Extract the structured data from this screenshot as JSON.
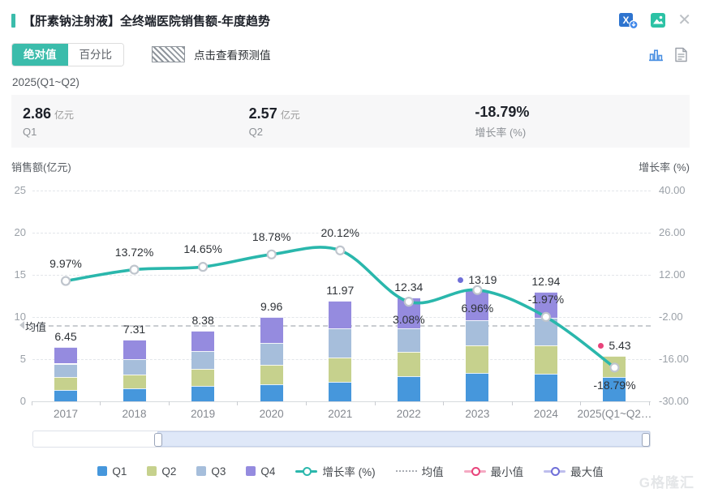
{
  "header": {
    "title": "【肝素钠注射液】全终端医院销售额-年度趋势"
  },
  "toolbar": {
    "tabs": [
      {
        "label": "绝对值",
        "active": true
      },
      {
        "label": "百分比",
        "active": false
      }
    ],
    "forecast_label": "点击查看预测值"
  },
  "period_label": "2025(Q1~Q2)",
  "stats": [
    {
      "value": "2.86",
      "unit": "亿元",
      "label": "Q1"
    },
    {
      "value": "2.57",
      "unit": "亿元",
      "label": "Q2"
    },
    {
      "value": "-18.79%",
      "unit": "",
      "label": "增长率 (%)"
    }
  ],
  "chart_data": {
    "type": "bar",
    "title": "全终端医院销售额-年度趋势",
    "categories": [
      "2017",
      "2018",
      "2019",
      "2020",
      "2021",
      "2022",
      "2023",
      "2024",
      "2025(Q1~Q2…"
    ],
    "bar_series": [
      {
        "name": "Q1",
        "color": "#4697dc",
        "values": [
          1.35,
          1.52,
          1.85,
          2.05,
          2.3,
          3.0,
          3.32,
          3.3,
          2.86
        ]
      },
      {
        "name": "Q2",
        "color": "#c6d18d",
        "values": [
          1.5,
          1.68,
          2.0,
          2.3,
          2.85,
          2.9,
          3.3,
          3.3,
          2.57
        ]
      },
      {
        "name": "Q3",
        "color": "#a6bedb",
        "values": [
          1.62,
          1.8,
          2.08,
          2.62,
          3.55,
          2.8,
          2.95,
          3.3,
          0
        ]
      },
      {
        "name": "Q4",
        "color": "#958bdf",
        "values": [
          1.98,
          2.31,
          2.45,
          2.99,
          3.27,
          3.64,
          3.62,
          3.04,
          0
        ]
      }
    ],
    "totals": [
      6.45,
      7.31,
      8.38,
      9.96,
      11.97,
      12.34,
      13.19,
      12.94,
      5.43
    ],
    "total_labels": [
      "6.45",
      "7.31",
      "8.38",
      "9.96",
      "11.97",
      "12.34",
      "13.19",
      "12.94",
      "5.43"
    ],
    "line_series": {
      "name": "增长率 (%)",
      "color": "#2ab7ac",
      "values": [
        9.97,
        13.72,
        14.65,
        18.78,
        20.12,
        3.08,
        6.96,
        -1.97,
        -18.79
      ],
      "labels": [
        "9.97%",
        "13.72%",
        "14.65%",
        "18.78%",
        "20.12%",
        "3.08%",
        "6.96%",
        "-1.97%",
        "-18.79%"
      ]
    },
    "left_axis": {
      "title": "销售额(亿元)",
      "ticks": [
        "25",
        "20",
        "15",
        "10",
        "5",
        "0"
      ],
      "range": [
        0,
        25
      ]
    },
    "right_axis": {
      "title": "增长率 (%)",
      "ticks": [
        "40.00",
        "26.00",
        "12.00",
        "-2.00",
        "-16.00",
        "-30.00"
      ],
      "range": [
        -30,
        40
      ]
    },
    "mean": {
      "label": "均值"
    },
    "max_point": {
      "category": "2023",
      "value": 13.19,
      "color": "#6f6fd8"
    },
    "min_point": {
      "category": "2025(Q1~Q2…",
      "value": 5.43,
      "color": "#e8437a"
    },
    "legend": [
      {
        "label": "Q1",
        "marker": "square",
        "color": "#4697dc"
      },
      {
        "label": "Q2",
        "marker": "square",
        "color": "#c6d18d"
      },
      {
        "label": "Q3",
        "marker": "square",
        "color": "#a6bedb"
      },
      {
        "label": "Q4",
        "marker": "square",
        "color": "#958bdf"
      },
      {
        "label": "增长率 (%)",
        "marker": "line-circle",
        "color": "#2ab7ac"
      },
      {
        "label": "均值",
        "marker": "dotted",
        "color": "#a9adb3"
      },
      {
        "label": "最小值",
        "marker": "ring",
        "color": "#e8437a"
      },
      {
        "label": "最大值",
        "marker": "ring",
        "color": "#6f6fd8"
      }
    ]
  },
  "watermark": "G格隆汇"
}
